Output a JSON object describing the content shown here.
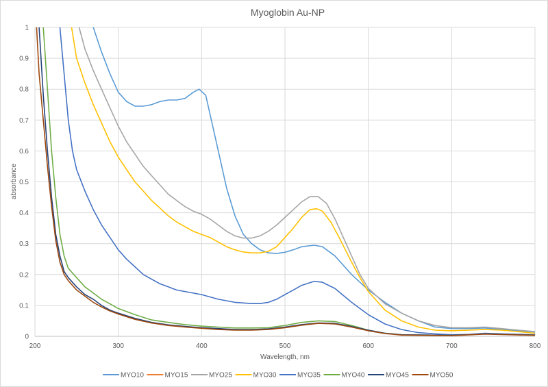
{
  "chart_data": {
    "type": "line",
    "title": "Myoglobin Au-NP",
    "xlabel": "Wavelength, nm",
    "ylabel": "absorbance",
    "xlim": [
      200,
      800
    ],
    "ylim": [
      0,
      1
    ],
    "xticks": [
      200,
      300,
      400,
      500,
      600,
      700,
      800
    ],
    "yticks": [
      0,
      0.1,
      0.2,
      0.3,
      0.4,
      0.5,
      0.6,
      0.7,
      0.8,
      0.9,
      1
    ],
    "grid": true,
    "legend_position": "bottom",
    "series": [
      {
        "name": "MYO10",
        "color": "#5B9BD5",
        "points": [
          [
            270,
            1.0
          ],
          [
            280,
            0.92
          ],
          [
            290,
            0.85
          ],
          [
            300,
            0.79
          ],
          [
            310,
            0.76
          ],
          [
            320,
            0.745
          ],
          [
            330,
            0.745
          ],
          [
            340,
            0.75
          ],
          [
            350,
            0.76
          ],
          [
            360,
            0.765
          ],
          [
            370,
            0.765
          ],
          [
            380,
            0.77
          ],
          [
            390,
            0.79
          ],
          [
            397,
            0.8
          ],
          [
            405,
            0.78
          ],
          [
            410,
            0.72
          ],
          [
            420,
            0.6
          ],
          [
            430,
            0.48
          ],
          [
            440,
            0.39
          ],
          [
            450,
            0.33
          ],
          [
            460,
            0.3
          ],
          [
            470,
            0.28
          ],
          [
            480,
            0.27
          ],
          [
            490,
            0.268
          ],
          [
            500,
            0.272
          ],
          [
            510,
            0.28
          ],
          [
            520,
            0.29
          ],
          [
            535,
            0.295
          ],
          [
            545,
            0.29
          ],
          [
            560,
            0.26
          ],
          [
            580,
            0.2
          ],
          [
            600,
            0.15
          ],
          [
            620,
            0.11
          ],
          [
            640,
            0.075
          ],
          [
            660,
            0.05
          ],
          [
            680,
            0.03
          ],
          [
            700,
            0.025
          ],
          [
            720,
            0.025
          ],
          [
            740,
            0.027
          ],
          [
            760,
            0.022
          ],
          [
            780,
            0.018
          ],
          [
            800,
            0.014
          ]
        ]
      },
      {
        "name": "MYO15",
        "color": "#ED7D31",
        "points": []
      },
      {
        "name": "MYO25",
        "color": "#A5A5A5",
        "points": [
          [
            253,
            1.0
          ],
          [
            260,
            0.93
          ],
          [
            270,
            0.86
          ],
          [
            280,
            0.8
          ],
          [
            290,
            0.74
          ],
          [
            300,
            0.68
          ],
          [
            310,
            0.63
          ],
          [
            320,
            0.59
          ],
          [
            330,
            0.55
          ],
          [
            340,
            0.52
          ],
          [
            350,
            0.49
          ],
          [
            360,
            0.46
          ],
          [
            370,
            0.44
          ],
          [
            380,
            0.42
          ],
          [
            390,
            0.405
          ],
          [
            400,
            0.395
          ],
          [
            410,
            0.38
          ],
          [
            420,
            0.36
          ],
          [
            430,
            0.34
          ],
          [
            440,
            0.325
          ],
          [
            450,
            0.318
          ],
          [
            460,
            0.318
          ],
          [
            470,
            0.325
          ],
          [
            480,
            0.34
          ],
          [
            490,
            0.36
          ],
          [
            500,
            0.385
          ],
          [
            510,
            0.41
          ],
          [
            520,
            0.435
          ],
          [
            530,
            0.452
          ],
          [
            540,
            0.452
          ],
          [
            550,
            0.43
          ],
          [
            560,
            0.38
          ],
          [
            570,
            0.32
          ],
          [
            580,
            0.26
          ],
          [
            590,
            0.2
          ],
          [
            600,
            0.155
          ],
          [
            620,
            0.105
          ],
          [
            640,
            0.075
          ],
          [
            660,
            0.05
          ],
          [
            680,
            0.035
          ],
          [
            700,
            0.028
          ],
          [
            720,
            0.028
          ],
          [
            740,
            0.03
          ],
          [
            760,
            0.025
          ],
          [
            780,
            0.02
          ],
          [
            800,
            0.015
          ]
        ]
      },
      {
        "name": "MYO30",
        "color": "#FFC000",
        "points": [
          [
            244,
            1.0
          ],
          [
            250,
            0.9
          ],
          [
            260,
            0.82
          ],
          [
            270,
            0.75
          ],
          [
            280,
            0.69
          ],
          [
            290,
            0.63
          ],
          [
            300,
            0.58
          ],
          [
            310,
            0.54
          ],
          [
            320,
            0.5
          ],
          [
            330,
            0.47
          ],
          [
            340,
            0.44
          ],
          [
            350,
            0.415
          ],
          [
            360,
            0.39
          ],
          [
            370,
            0.37
          ],
          [
            380,
            0.355
          ],
          [
            390,
            0.34
          ],
          [
            400,
            0.33
          ],
          [
            410,
            0.32
          ],
          [
            420,
            0.305
          ],
          [
            430,
            0.29
          ],
          [
            440,
            0.28
          ],
          [
            450,
            0.273
          ],
          [
            460,
            0.27
          ],
          [
            470,
            0.27
          ],
          [
            480,
            0.275
          ],
          [
            490,
            0.29
          ],
          [
            500,
            0.32
          ],
          [
            510,
            0.35
          ],
          [
            520,
            0.385
          ],
          [
            530,
            0.41
          ],
          [
            538,
            0.413
          ],
          [
            545,
            0.405
          ],
          [
            555,
            0.37
          ],
          [
            565,
            0.32
          ],
          [
            580,
            0.24
          ],
          [
            590,
            0.19
          ],
          [
            600,
            0.145
          ],
          [
            620,
            0.085
          ],
          [
            640,
            0.05
          ],
          [
            660,
            0.03
          ],
          [
            680,
            0.02
          ],
          [
            700,
            0.018
          ],
          [
            720,
            0.02
          ],
          [
            740,
            0.022
          ],
          [
            760,
            0.02
          ],
          [
            780,
            0.015
          ],
          [
            800,
            0.01
          ]
        ]
      },
      {
        "name": "MYO35",
        "color": "#4472C4",
        "points": [
          [
            230,
            1.0
          ],
          [
            235,
            0.85
          ],
          [
            240,
            0.7
          ],
          [
            245,
            0.6
          ],
          [
            250,
            0.54
          ],
          [
            260,
            0.47
          ],
          [
            270,
            0.41
          ],
          [
            280,
            0.36
          ],
          [
            290,
            0.32
          ],
          [
            300,
            0.28
          ],
          [
            310,
            0.25
          ],
          [
            320,
            0.225
          ],
          [
            330,
            0.2
          ],
          [
            340,
            0.185
          ],
          [
            350,
            0.17
          ],
          [
            360,
            0.16
          ],
          [
            370,
            0.15
          ],
          [
            380,
            0.145
          ],
          [
            390,
            0.14
          ],
          [
            400,
            0.135
          ],
          [
            420,
            0.12
          ],
          [
            440,
            0.11
          ],
          [
            460,
            0.106
          ],
          [
            470,
            0.106
          ],
          [
            480,
            0.11
          ],
          [
            490,
            0.12
          ],
          [
            500,
            0.135
          ],
          [
            510,
            0.15
          ],
          [
            520,
            0.165
          ],
          [
            535,
            0.178
          ],
          [
            545,
            0.175
          ],
          [
            560,
            0.155
          ],
          [
            580,
            0.11
          ],
          [
            600,
            0.07
          ],
          [
            620,
            0.04
          ],
          [
            640,
            0.022
          ],
          [
            660,
            0.012
          ],
          [
            680,
            0.008
          ],
          [
            700,
            0.005
          ],
          [
            720,
            0.006
          ],
          [
            740,
            0.01
          ],
          [
            760,
            0.008
          ],
          [
            800,
            0.005
          ]
        ]
      },
      {
        "name": "MYO40",
        "color": "#70AD47",
        "points": [
          [
            210,
            1.0
          ],
          [
            215,
            0.8
          ],
          [
            220,
            0.6
          ],
          [
            225,
            0.45
          ],
          [
            230,
            0.33
          ],
          [
            235,
            0.26
          ],
          [
            240,
            0.22
          ],
          [
            250,
            0.19
          ],
          [
            260,
            0.16
          ],
          [
            270,
            0.14
          ],
          [
            280,
            0.12
          ],
          [
            290,
            0.105
          ],
          [
            300,
            0.09
          ],
          [
            320,
            0.07
          ],
          [
            340,
            0.053
          ],
          [
            360,
            0.045
          ],
          [
            380,
            0.038
          ],
          [
            400,
            0.033
          ],
          [
            420,
            0.03
          ],
          [
            440,
            0.027
          ],
          [
            460,
            0.027
          ],
          [
            480,
            0.028
          ],
          [
            500,
            0.035
          ],
          [
            520,
            0.045
          ],
          [
            540,
            0.05
          ],
          [
            560,
            0.048
          ],
          [
            580,
            0.035
          ],
          [
            600,
            0.02
          ],
          [
            620,
            0.01
          ],
          [
            640,
            0.005
          ],
          [
            700,
            0.003
          ],
          [
            740,
            0.008
          ],
          [
            800,
            0.004
          ]
        ]
      },
      {
        "name": "MYO45",
        "color": "#264478",
        "points": [
          [
            205,
            1.0
          ],
          [
            210,
            0.78
          ],
          [
            215,
            0.6
          ],
          [
            220,
            0.45
          ],
          [
            225,
            0.33
          ],
          [
            230,
            0.26
          ],
          [
            235,
            0.21
          ],
          [
            240,
            0.19
          ],
          [
            250,
            0.16
          ],
          [
            260,
            0.135
          ],
          [
            270,
            0.12
          ],
          [
            280,
            0.1
          ],
          [
            290,
            0.085
          ],
          [
            300,
            0.075
          ],
          [
            320,
            0.058
          ],
          [
            340,
            0.045
          ],
          [
            360,
            0.037
          ],
          [
            380,
            0.032
          ],
          [
            400,
            0.028
          ],
          [
            420,
            0.025
          ],
          [
            440,
            0.022
          ],
          [
            460,
            0.022
          ],
          [
            480,
            0.024
          ],
          [
            500,
            0.03
          ],
          [
            520,
            0.038
          ],
          [
            540,
            0.043
          ],
          [
            560,
            0.042
          ],
          [
            580,
            0.032
          ],
          [
            600,
            0.02
          ],
          [
            620,
            0.01
          ],
          [
            640,
            0.005
          ],
          [
            700,
            0.003
          ],
          [
            740,
            0.008
          ],
          [
            800,
            0.004
          ]
        ]
      },
      {
        "name": "MYO50",
        "color": "#9E480E",
        "points": [
          [
            202,
            1.0
          ],
          [
            205,
            0.85
          ],
          [
            210,
            0.7
          ],
          [
            215,
            0.55
          ],
          [
            220,
            0.42
          ],
          [
            225,
            0.31
          ],
          [
            230,
            0.24
          ],
          [
            235,
            0.2
          ],
          [
            240,
            0.18
          ],
          [
            250,
            0.15
          ],
          [
            260,
            0.13
          ],
          [
            270,
            0.11
          ],
          [
            280,
            0.095
          ],
          [
            290,
            0.082
          ],
          [
            300,
            0.072
          ],
          [
            320,
            0.055
          ],
          [
            340,
            0.043
          ],
          [
            360,
            0.035
          ],
          [
            380,
            0.03
          ],
          [
            400,
            0.026
          ],
          [
            420,
            0.022
          ],
          [
            440,
            0.02
          ],
          [
            460,
            0.02
          ],
          [
            480,
            0.022
          ],
          [
            500,
            0.028
          ],
          [
            520,
            0.036
          ],
          [
            540,
            0.042
          ],
          [
            560,
            0.04
          ],
          [
            580,
            0.03
          ],
          [
            600,
            0.018
          ],
          [
            620,
            0.009
          ],
          [
            640,
            0.004
          ],
          [
            700,
            0.002
          ],
          [
            740,
            0.007
          ],
          [
            800,
            0.003
          ]
        ]
      }
    ]
  }
}
